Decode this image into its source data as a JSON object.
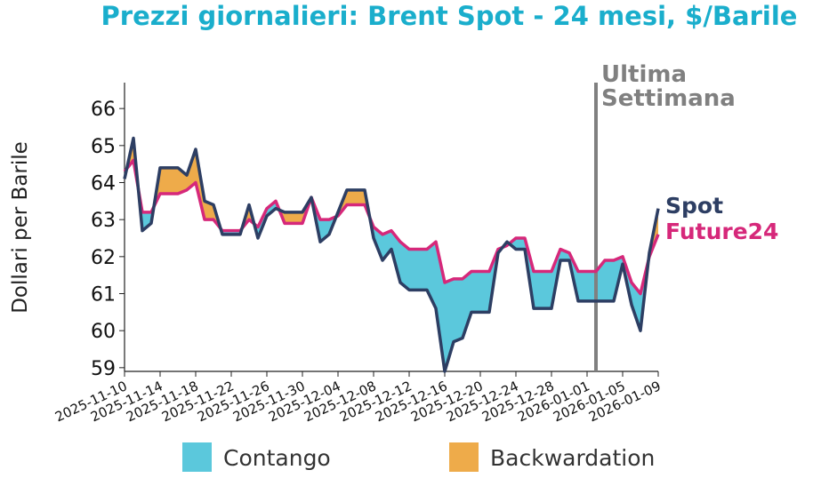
{
  "chart_data": {
    "type": "line",
    "title": "Prezzi giornalieri: Brent Spot - 24 mesi, $/Barile",
    "y_label": "Dollari per Barile",
    "x": [
      "2025-11-10",
      "2025-11-11",
      "2025-11-12",
      "2025-11-13",
      "2025-11-14",
      "2025-11-15",
      "2025-11-16",
      "2025-11-17",
      "2025-11-18",
      "2025-11-19",
      "2025-11-20",
      "2025-11-21",
      "2025-11-22",
      "2025-11-23",
      "2025-11-24",
      "2025-11-25",
      "2025-11-26",
      "2025-11-27",
      "2025-11-28",
      "2025-11-29",
      "2025-11-30",
      "2025-12-01",
      "2025-12-02",
      "2025-12-03",
      "2025-12-04",
      "2025-12-05",
      "2025-12-06",
      "2025-12-07",
      "2025-12-08",
      "2025-12-09",
      "2025-12-10",
      "2025-12-11",
      "2025-12-12",
      "2025-12-13",
      "2025-12-14",
      "2025-12-15",
      "2025-12-16",
      "2025-12-17",
      "2025-12-18",
      "2025-12-19",
      "2025-12-20",
      "2025-12-21",
      "2025-12-22",
      "2025-12-23",
      "2025-12-24",
      "2025-12-25",
      "2025-12-26",
      "2025-12-27",
      "2025-12-28",
      "2025-12-29",
      "2025-12-30",
      "2025-12-31",
      "2026-01-01",
      "2026-01-02",
      "2026-01-03",
      "2026-01-04",
      "2026-01-05",
      "2026-01-06",
      "2026-01-07",
      "2026-01-08",
      "2026-01-09"
    ],
    "series": [
      {
        "name": "Spot",
        "color": "#2d3e63",
        "values": [
          64.1,
          65.2,
          62.7,
          62.9,
          64.4,
          64.4,
          64.4,
          64.2,
          64.9,
          63.5,
          63.4,
          62.6,
          62.6,
          62.6,
          63.4,
          62.5,
          63.1,
          63.3,
          63.2,
          63.2,
          63.2,
          63.6,
          62.4,
          62.6,
          63.2,
          63.8,
          63.8,
          63.8,
          62.5,
          61.9,
          62.2,
          61.3,
          61.1,
          61.1,
          61.1,
          60.6,
          58.9,
          59.7,
          59.8,
          60.5,
          60.5,
          60.5,
          62.1,
          62.4,
          62.2,
          62.2,
          60.6,
          60.6,
          60.6,
          61.9,
          61.9,
          60.8,
          60.8,
          60.8,
          60.8,
          60.8,
          61.8,
          60.7,
          60.0,
          62.1,
          63.3
        ]
      },
      {
        "name": "Future24",
        "color": "#d6287a",
        "values": [
          64.3,
          64.6,
          63.2,
          63.2,
          63.7,
          63.7,
          63.7,
          63.8,
          64.0,
          63.0,
          63.0,
          62.7,
          62.7,
          62.7,
          63.0,
          62.8,
          63.3,
          63.5,
          62.9,
          62.9,
          62.9,
          63.6,
          63.0,
          63.0,
          63.1,
          63.4,
          63.4,
          63.4,
          62.8,
          62.6,
          62.7,
          62.4,
          62.2,
          62.2,
          62.2,
          62.4,
          61.3,
          61.4,
          61.4,
          61.6,
          61.6,
          61.6,
          62.2,
          62.3,
          62.5,
          62.5,
          61.6,
          61.6,
          61.6,
          62.2,
          62.1,
          61.6,
          61.6,
          61.6,
          61.9,
          61.9,
          62.0,
          61.3,
          61.0,
          62.0,
          62.6
        ]
      }
    ],
    "fill_legend": [
      {
        "name": "Contango",
        "color": "#5bc8dc"
      },
      {
        "name": "Backwardation",
        "color": "#eeab4a"
      }
    ],
    "annotation": {
      "x": "2026-01-02",
      "text": [
        "Ultima",
        "Settimana"
      ],
      "color": "#808080"
    },
    "xlim": [
      "2025-11-10",
      "2026-01-09"
    ],
    "xticks": [
      "2025-11-10",
      "2025-11-14",
      "2025-11-18",
      "2025-11-22",
      "2025-11-26",
      "2025-11-30",
      "2025-12-04",
      "2025-12-08",
      "2025-12-12",
      "2025-12-16",
      "2025-12-20",
      "2025-12-24",
      "2025-12-28",
      "2026-01-01",
      "2026-01-05",
      "2026-01-09"
    ],
    "ylim": [
      58.9,
      66.7
    ],
    "yticks": [
      59,
      60,
      61,
      62,
      63,
      64,
      65,
      66
    ]
  }
}
